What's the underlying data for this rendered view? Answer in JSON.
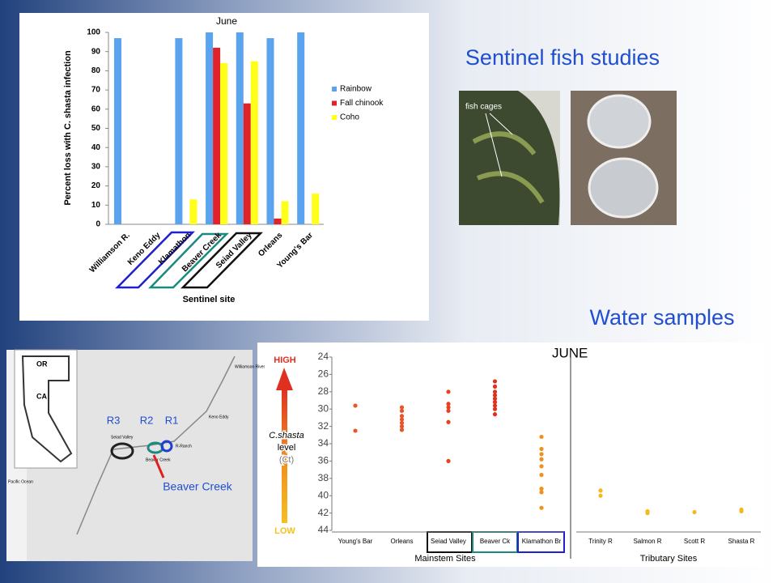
{
  "slide": {
    "heading_fish": "Sentinel fish studies",
    "heading_water": "Water samples",
    "photo_label": "fish cages"
  },
  "chart_data": [
    {
      "type": "bar",
      "title": "June",
      "ylabel": "Percent loss with C. shasta infection",
      "xlabel": "Sentinel site",
      "categories": [
        "Williamson R.",
        "Keno Eddy",
        "Klamathon",
        "Beaver Creek",
        "Seiad Valley",
        "Orleans",
        "Young's Bar"
      ],
      "series": [
        {
          "name": "Rainbow",
          "color": "#5aa3ee",
          "values": [
            97,
            null,
            97,
            100,
            100,
            97,
            100
          ]
        },
        {
          "name": "Fall chinook",
          "color": "#e0222a",
          "values": [
            null,
            null,
            null,
            92,
            63,
            3,
            null
          ]
        },
        {
          "name": "Coho",
          "color": "#ffff1a",
          "values": [
            null,
            null,
            13,
            84,
            85,
            12,
            16
          ]
        }
      ],
      "ylim": [
        0,
        100
      ],
      "yticks": [
        0,
        10,
        20,
        30,
        40,
        50,
        60,
        70,
        80,
        90,
        100
      ]
    },
    {
      "type": "strip",
      "title": "JUNE",
      "inverted": true,
      "groups": [
        {
          "name": "Young's Bar",
          "color": "#e8552a",
          "values": [
            29.6,
            32.5
          ]
        },
        {
          "name": "Orleans",
          "color": "#e8552a",
          "values": [
            29.8,
            30.2,
            30.8,
            31.2,
            31.6,
            32.0,
            32.4
          ]
        },
        {
          "name": "Seiad Valley",
          "color": "#e6421f",
          "values": [
            28.0,
            29.4,
            29.8,
            30.2,
            31.5,
            36.0
          ]
        },
        {
          "name": "Beaver Ck",
          "color": "#e0301e",
          "values": [
            26.8,
            27.4,
            28.0,
            28.4,
            28.8,
            29.2,
            29.6,
            30.0,
            30.6
          ]
        },
        {
          "name": "Klamathon Br",
          "color": "#f0901e",
          "values": [
            33.2,
            34.6,
            35.2,
            35.8,
            36.6,
            37.6,
            39.2,
            39.6,
            41.4
          ]
        },
        {
          "name": "Trinity R",
          "color": "#f5b81e",
          "values": [
            39.4,
            40.0
          ]
        },
        {
          "name": "Salmon R",
          "color": "#f5b81e",
          "values": [
            41.8,
            42.0
          ]
        },
        {
          "name": "Scott R",
          "color": "#f5b81e",
          "values": [
            41.9
          ]
        },
        {
          "name": "Shasta R",
          "color": "#f5b81e",
          "values": [
            41.6,
            41.8
          ]
        }
      ],
      "group_labels": [
        "Mainstem Sites",
        "Tributary Sites"
      ],
      "legend": {
        "high": "HIGH",
        "name": "C.shasta",
        "level": "level",
        "unit": "(Ct)",
        "low": "LOW"
      },
      "ylim": [
        24,
        44
      ],
      "yticks": [
        24,
        26,
        28,
        30,
        32,
        34,
        36,
        38,
        40,
        42,
        44
      ]
    }
  ],
  "map": {
    "or": "OR",
    "ca": "CA",
    "r3": "R3",
    "r2": "R2",
    "r1": "R1",
    "callout": "Beaver Creek",
    "seiad": "Seiad Valley",
    "beaver": "Beaver Creek",
    "ranch": "R-Ranch",
    "keno": "Keno Eddy",
    "williamson": "Williamson River",
    "ocean": "Pacific Ocean"
  }
}
